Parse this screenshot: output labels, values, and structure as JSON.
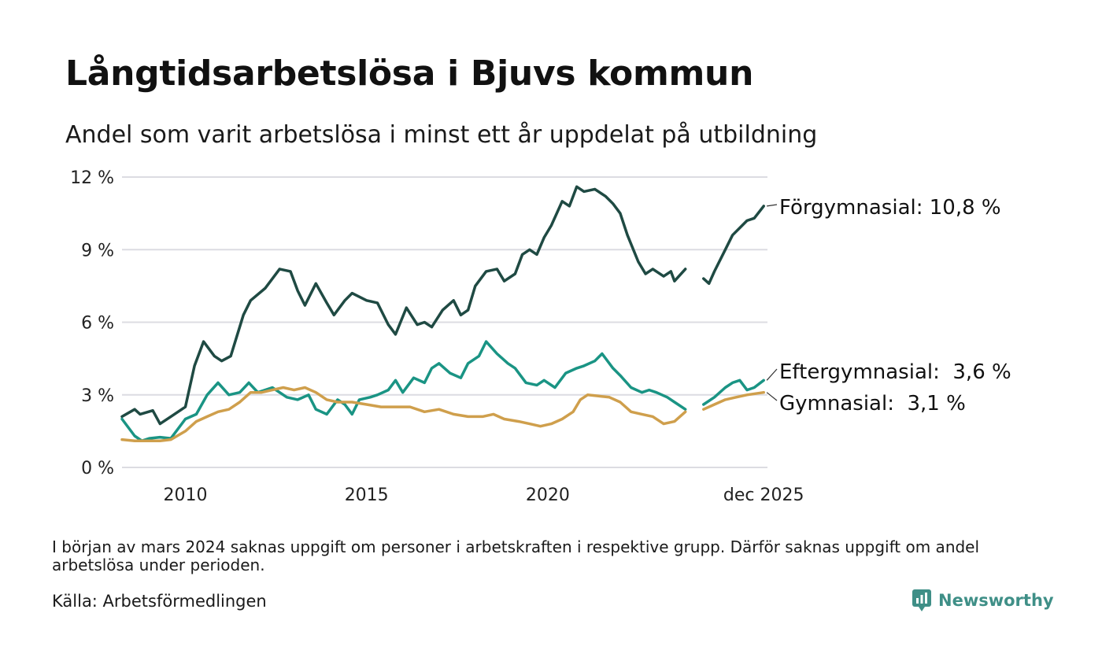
{
  "title": "Långtidsarbetslösa i Bjuvs kommun",
  "subtitle": "Andel som varit arbetslösa i minst ett år uppdelat på utbildning",
  "note": "I början av mars 2024 saknas uppgift om personer i arbetskraften i respektive grupp. Därför saknas uppgift om andel arbetslösa under perioden.",
  "source": "Källa: Arbetsförmedlingen",
  "brand": "Newsworthy",
  "colors": {
    "forgymnasial": "#1f4a43",
    "eftergymnasial": "#1a9484",
    "gymnasial": "#cf9f4c",
    "grid": "#dcdce2",
    "brand": "#3f8f87"
  },
  "chart_data": {
    "type": "line",
    "title": "Långtidsarbetslösa i Bjuvs kommun",
    "xlabel": "",
    "ylabel": "",
    "x_start": "2008-04",
    "x_end": "2025-12",
    "xlim": [
      2008.25,
      2026.0
    ],
    "ylim": [
      0,
      12
    ],
    "yticks": [
      0,
      3,
      6,
      9,
      12
    ],
    "ytick_labels": [
      "0 %",
      "3 %",
      "6 %",
      "9 %",
      "12 %"
    ],
    "xticks": [
      2010.0,
      2015.0,
      2020.0,
      2025.96
    ],
    "xtick_labels": [
      "2010",
      "2015",
      "2020",
      "dec 2025"
    ],
    "gap": [
      2023.8,
      2024.3
    ],
    "series": [
      {
        "name": "Förgymnasial",
        "label": "Förgymnasial: 10,8 %",
        "color_key": "forgymnasial",
        "points": [
          [
            2008.25,
            2.1
          ],
          [
            2008.6,
            2.4
          ],
          [
            2008.75,
            2.2
          ],
          [
            2009.1,
            2.35
          ],
          [
            2009.3,
            1.8
          ],
          [
            2009.6,
            2.1
          ],
          [
            2010.0,
            2.5
          ],
          [
            2010.25,
            4.2
          ],
          [
            2010.5,
            5.2
          ],
          [
            2010.8,
            4.6
          ],
          [
            2011.0,
            4.4
          ],
          [
            2011.25,
            4.6
          ],
          [
            2011.6,
            6.3
          ],
          [
            2011.8,
            6.9
          ],
          [
            2012.2,
            7.4
          ],
          [
            2012.6,
            8.2
          ],
          [
            2012.9,
            8.1
          ],
          [
            2013.1,
            7.3
          ],
          [
            2013.3,
            6.7
          ],
          [
            2013.6,
            7.6
          ],
          [
            2013.9,
            6.8
          ],
          [
            2014.1,
            6.3
          ],
          [
            2014.4,
            6.9
          ],
          [
            2014.6,
            7.2
          ],
          [
            2015.0,
            6.9
          ],
          [
            2015.3,
            6.8
          ],
          [
            2015.6,
            5.9
          ],
          [
            2015.8,
            5.5
          ],
          [
            2016.1,
            6.6
          ],
          [
            2016.4,
            5.9
          ],
          [
            2016.6,
            6.0
          ],
          [
            2016.8,
            5.8
          ],
          [
            2017.1,
            6.5
          ],
          [
            2017.4,
            6.9
          ],
          [
            2017.6,
            6.3
          ],
          [
            2017.8,
            6.5
          ],
          [
            2018.0,
            7.5
          ],
          [
            2018.3,
            8.1
          ],
          [
            2018.6,
            8.2
          ],
          [
            2018.8,
            7.7
          ],
          [
            2019.1,
            8.0
          ],
          [
            2019.3,
            8.8
          ],
          [
            2019.5,
            9.0
          ],
          [
            2019.7,
            8.8
          ],
          [
            2019.9,
            9.5
          ],
          [
            2020.1,
            10.0
          ],
          [
            2020.4,
            11.0
          ],
          [
            2020.6,
            10.8
          ],
          [
            2020.8,
            11.6
          ],
          [
            2021.0,
            11.4
          ],
          [
            2021.3,
            11.5
          ],
          [
            2021.6,
            11.2
          ],
          [
            2021.8,
            10.9
          ],
          [
            2022.0,
            10.5
          ],
          [
            2022.2,
            9.6
          ],
          [
            2022.5,
            8.5
          ],
          [
            2022.7,
            8.0
          ],
          [
            2022.9,
            8.2
          ],
          [
            2023.2,
            7.9
          ],
          [
            2023.4,
            8.1
          ],
          [
            2023.5,
            7.7
          ],
          [
            2023.8,
            8.2
          ],
          [
            2024.3,
            7.8
          ],
          [
            2024.45,
            7.6
          ],
          [
            2024.6,
            8.1
          ],
          [
            2024.9,
            9.0
          ],
          [
            2025.1,
            9.6
          ],
          [
            2025.3,
            9.9
          ],
          [
            2025.5,
            10.2
          ],
          [
            2025.7,
            10.3
          ],
          [
            2025.96,
            10.8
          ]
        ]
      },
      {
        "name": "Eftergymnasial",
        "label": "Eftergymnasial:  3,6 %",
        "color_key": "eftergymnasial",
        "points": [
          [
            2008.25,
            2.0
          ],
          [
            2008.6,
            1.3
          ],
          [
            2008.8,
            1.1
          ],
          [
            2009.0,
            1.2
          ],
          [
            2009.3,
            1.25
          ],
          [
            2009.6,
            1.2
          ],
          [
            2010.0,
            2.0
          ],
          [
            2010.3,
            2.2
          ],
          [
            2010.6,
            3.0
          ],
          [
            2010.9,
            3.5
          ],
          [
            2011.2,
            3.0
          ],
          [
            2011.5,
            3.1
          ],
          [
            2011.75,
            3.5
          ],
          [
            2012.0,
            3.1
          ],
          [
            2012.4,
            3.3
          ],
          [
            2012.8,
            2.9
          ],
          [
            2013.1,
            2.8
          ],
          [
            2013.4,
            3.0
          ],
          [
            2013.6,
            2.4
          ],
          [
            2013.9,
            2.2
          ],
          [
            2014.2,
            2.8
          ],
          [
            2014.4,
            2.6
          ],
          [
            2014.6,
            2.2
          ],
          [
            2014.8,
            2.8
          ],
          [
            2015.1,
            2.9
          ],
          [
            2015.3,
            3.0
          ],
          [
            2015.6,
            3.2
          ],
          [
            2015.8,
            3.6
          ],
          [
            2016.0,
            3.1
          ],
          [
            2016.3,
            3.7
          ],
          [
            2016.6,
            3.5
          ],
          [
            2016.8,
            4.1
          ],
          [
            2017.0,
            4.3
          ],
          [
            2017.3,
            3.9
          ],
          [
            2017.6,
            3.7
          ],
          [
            2017.8,
            4.3
          ],
          [
            2018.1,
            4.6
          ],
          [
            2018.3,
            5.2
          ],
          [
            2018.6,
            4.7
          ],
          [
            2018.9,
            4.3
          ],
          [
            2019.1,
            4.1
          ],
          [
            2019.4,
            3.5
          ],
          [
            2019.7,
            3.4
          ],
          [
            2019.9,
            3.6
          ],
          [
            2020.2,
            3.3
          ],
          [
            2020.5,
            3.9
          ],
          [
            2020.8,
            4.1
          ],
          [
            2021.0,
            4.2
          ],
          [
            2021.3,
            4.4
          ],
          [
            2021.5,
            4.7
          ],
          [
            2021.8,
            4.1
          ],
          [
            2022.0,
            3.8
          ],
          [
            2022.3,
            3.3
          ],
          [
            2022.6,
            3.1
          ],
          [
            2022.8,
            3.2
          ],
          [
            2023.0,
            3.1
          ],
          [
            2023.3,
            2.9
          ],
          [
            2023.5,
            2.7
          ],
          [
            2023.8,
            2.4
          ],
          [
            2024.3,
            2.6
          ],
          [
            2024.6,
            2.9
          ],
          [
            2024.9,
            3.3
          ],
          [
            2025.1,
            3.5
          ],
          [
            2025.3,
            3.6
          ],
          [
            2025.5,
            3.2
          ],
          [
            2025.7,
            3.3
          ],
          [
            2025.96,
            3.6
          ]
        ]
      },
      {
        "name": "Gymnasial",
        "label": "Gymnasial:  3,1 %",
        "color_key": "gymnasial",
        "points": [
          [
            2008.25,
            1.15
          ],
          [
            2008.6,
            1.1
          ],
          [
            2009.0,
            1.1
          ],
          [
            2009.3,
            1.1
          ],
          [
            2009.6,
            1.15
          ],
          [
            2010.0,
            1.5
          ],
          [
            2010.3,
            1.9
          ],
          [
            2010.6,
            2.1
          ],
          [
            2010.9,
            2.3
          ],
          [
            2011.2,
            2.4
          ],
          [
            2011.5,
            2.7
          ],
          [
            2011.8,
            3.1
          ],
          [
            2012.1,
            3.1
          ],
          [
            2012.4,
            3.2
          ],
          [
            2012.7,
            3.3
          ],
          [
            2013.0,
            3.2
          ],
          [
            2013.3,
            3.3
          ],
          [
            2013.6,
            3.1
          ],
          [
            2013.9,
            2.8
          ],
          [
            2014.2,
            2.7
          ],
          [
            2014.6,
            2.7
          ],
          [
            2015.0,
            2.6
          ],
          [
            2015.4,
            2.5
          ],
          [
            2015.8,
            2.5
          ],
          [
            2016.2,
            2.5
          ],
          [
            2016.6,
            2.3
          ],
          [
            2017.0,
            2.4
          ],
          [
            2017.4,
            2.2
          ],
          [
            2017.8,
            2.1
          ],
          [
            2018.2,
            2.1
          ],
          [
            2018.5,
            2.2
          ],
          [
            2018.8,
            2.0
          ],
          [
            2019.2,
            1.9
          ],
          [
            2019.5,
            1.8
          ],
          [
            2019.8,
            1.7
          ],
          [
            2020.1,
            1.8
          ],
          [
            2020.4,
            2.0
          ],
          [
            2020.7,
            2.3
          ],
          [
            2020.9,
            2.8
          ],
          [
            2021.1,
            3.0
          ],
          [
            2021.4,
            2.95
          ],
          [
            2021.7,
            2.9
          ],
          [
            2022.0,
            2.7
          ],
          [
            2022.3,
            2.3
          ],
          [
            2022.6,
            2.2
          ],
          [
            2022.9,
            2.1
          ],
          [
            2023.2,
            1.8
          ],
          [
            2023.5,
            1.9
          ],
          [
            2023.8,
            2.3
          ],
          [
            2024.3,
            2.4
          ],
          [
            2024.6,
            2.6
          ],
          [
            2024.9,
            2.8
          ],
          [
            2025.2,
            2.9
          ],
          [
            2025.5,
            3.0
          ],
          [
            2025.96,
            3.1
          ]
        ]
      }
    ]
  }
}
